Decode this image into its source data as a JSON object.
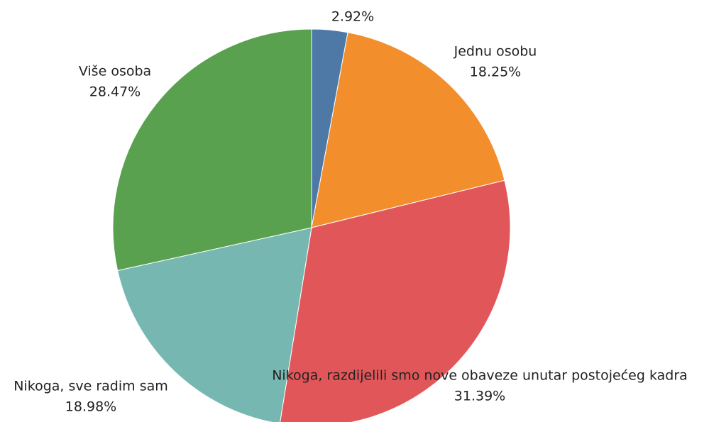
{
  "chart_data": {
    "type": "pie",
    "categories": [
      null,
      "Jednu osobu",
      "Nikoga, razdijelili smo nove obaveze unutar postojećeg kadra",
      "Nikoga, sve radim sam",
      "Više osoba"
    ],
    "values": [
      2.92,
      18.25,
      31.39,
      18.98,
      28.47
    ],
    "value_labels": [
      "2.92%",
      "18.25%",
      "31.39%",
      "18.98%",
      "28.47%"
    ],
    "colors": [
      "#4e79a7",
      "#f28e2b",
      "#e15759",
      "#76b7b2",
      "#59a14f"
    ]
  }
}
